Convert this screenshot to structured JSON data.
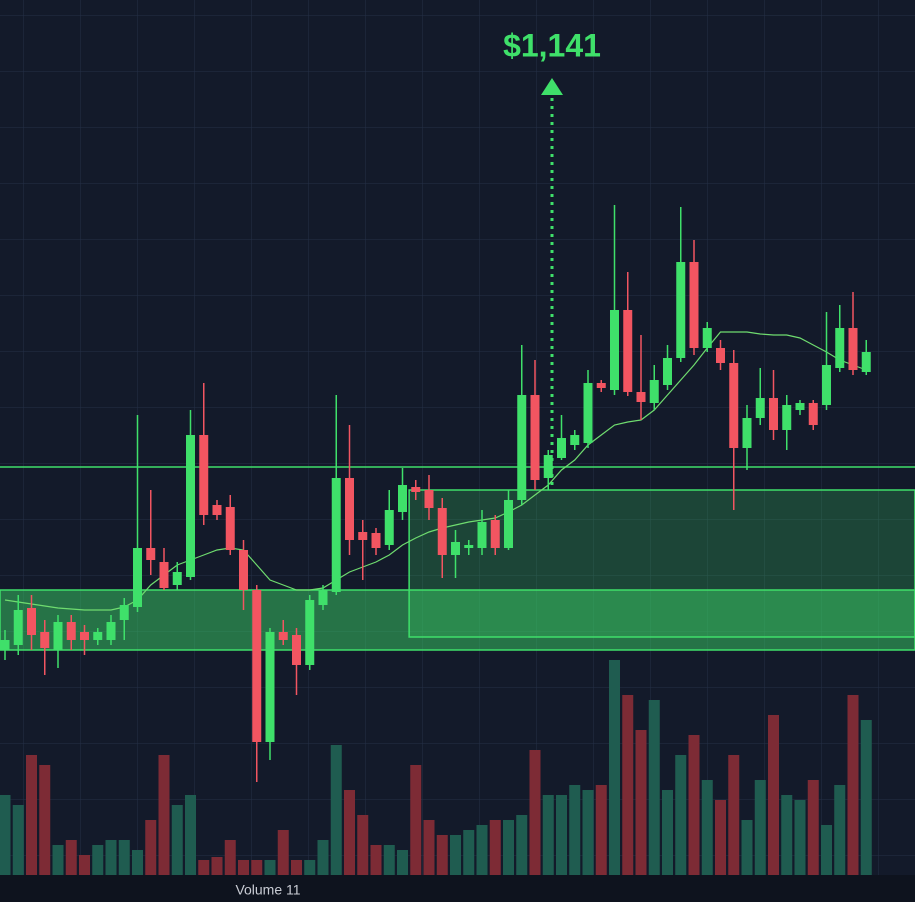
{
  "chart_data": {
    "type": "candlestick",
    "annotation": "$1,141",
    "volume_label": "Volume 11",
    "ylim": [
      0,
      900
    ],
    "up_color": "#3fe06a",
    "down_color": "#f25561",
    "open": [
      250,
      255,
      292,
      268,
      250,
      278,
      268,
      260,
      260,
      280,
      293,
      352,
      338,
      315,
      323,
      465,
      395,
      393,
      350,
      310,
      158,
      268,
      265,
      235,
      295,
      308,
      422,
      368,
      367,
      355,
      388,
      413,
      410,
      392,
      345,
      352,
      352,
      380,
      352,
      400,
      505,
      422,
      442,
      455,
      457,
      517,
      510,
      590,
      508,
      497,
      515,
      542,
      638,
      552,
      552,
      537,
      452,
      482,
      502,
      470,
      490,
      497,
      495,
      532,
      572,
      528
    ],
    "high": [
      270,
      305,
      305,
      280,
      285,
      285,
      275,
      272,
      285,
      302,
      485,
      410,
      352,
      338,
      490,
      517,
      400,
      405,
      360,
      315,
      272,
      280,
      272,
      305,
      315,
      505,
      475,
      380,
      372,
      410,
      432,
      420,
      425,
      402,
      370,
      360,
      390,
      385,
      410,
      555,
      540,
      450,
      485,
      470,
      530,
      520,
      695,
      628,
      565,
      535,
      555,
      693,
      660,
      578,
      560,
      550,
      495,
      532,
      530,
      505,
      500,
      500,
      588,
      595,
      608,
      560
    ],
    "low": [
      240,
      245,
      250,
      225,
      232,
      250,
      245,
      255,
      255,
      260,
      288,
      325,
      310,
      310,
      320,
      375,
      380,
      345,
      290,
      118,
      140,
      255,
      205,
      230,
      290,
      305,
      345,
      320,
      345,
      350,
      380,
      400,
      380,
      322,
      322,
      345,
      345,
      345,
      350,
      395,
      410,
      410,
      440,
      450,
      452,
      508,
      505,
      504,
      480,
      490,
      510,
      538,
      545,
      548,
      530,
      390,
      430,
      475,
      460,
      450,
      485,
      470,
      490,
      528,
      525,
      525
    ],
    "close": [
      260,
      290,
      265,
      252,
      278,
      260,
      260,
      268,
      278,
      295,
      352,
      340,
      312,
      328,
      465,
      385,
      385,
      350,
      310,
      158,
      268,
      260,
      235,
      300,
      310,
      422,
      360,
      360,
      352,
      390,
      415,
      408,
      392,
      345,
      358,
      355,
      378,
      352,
      400,
      505,
      420,
      445,
      462,
      465,
      517,
      512,
      590,
      508,
      498,
      520,
      542,
      638,
      552,
      572,
      537,
      452,
      482,
      502,
      470,
      495,
      497,
      475,
      535,
      572,
      530,
      548
    ],
    "ma": {
      "color": "#6fdc6f",
      "values": [
        300,
        298,
        296,
        294,
        292,
        291,
        290,
        290,
        290,
        293,
        300,
        315,
        325,
        335,
        340,
        345,
        350,
        352,
        350,
        335,
        320,
        315,
        310,
        310,
        312,
        320,
        328,
        333,
        338,
        345,
        355,
        362,
        368,
        372,
        375,
        378,
        380,
        382,
        388,
        395,
        405,
        415,
        430,
        440,
        455,
        465,
        475,
        478,
        480,
        490,
        505,
        520,
        535,
        552,
        568,
        568,
        568,
        566,
        565,
        565,
        562,
        555,
        548,
        540,
        535,
        530
      ]
    },
    "volume": {
      "ylim": [
        0,
        875
      ],
      "up_color": "#1f5c50",
      "down_color": "#7d2b35",
      "values": [
        80,
        70,
        120,
        110,
        30,
        35,
        20,
        30,
        35,
        35,
        25,
        55,
        120,
        70,
        80,
        15,
        18,
        35,
        15,
        15,
        15,
        45,
        15,
        15,
        35,
        130,
        85,
        60,
        30,
        30,
        25,
        110,
        55,
        40,
        40,
        45,
        50,
        55,
        55,
        60,
        125,
        80,
        80,
        90,
        85,
        90,
        215,
        180,
        145,
        175,
        85,
        120,
        140,
        95,
        75,
        120,
        55,
        95,
        160,
        80,
        75,
        95,
        50,
        90,
        180,
        155
      ]
    },
    "levels": [
      433
    ],
    "zones": [
      {
        "low": 250,
        "high": 310
      },
      {
        "low": 263,
        "high": 410,
        "from": 31
      }
    ]
  }
}
